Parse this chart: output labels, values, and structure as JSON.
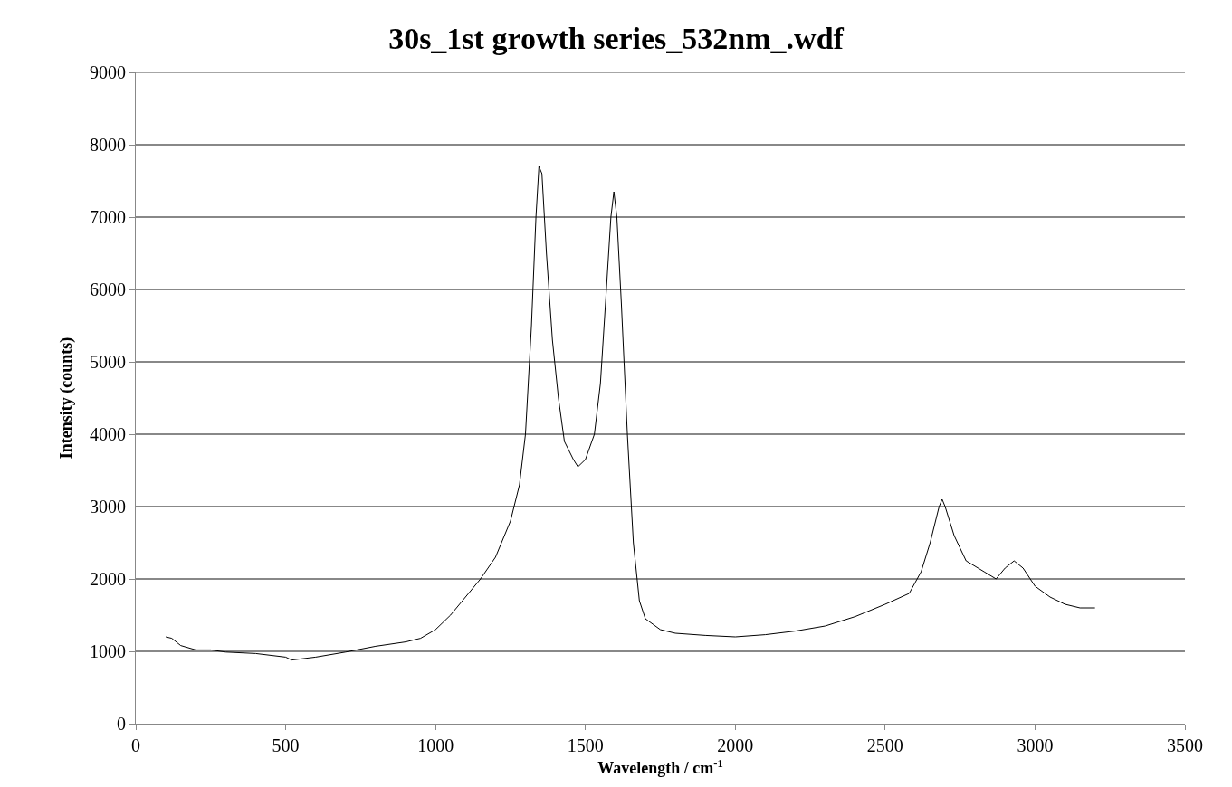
{
  "chart_data": {
    "type": "line",
    "title": "30s_1st growth series_532nm_.wdf",
    "xlabel": "Wavelength / cm$^{-1}$",
    "ylabel": "Intensity (counts)",
    "x": [
      100,
      120,
      150,
      200,
      250,
      300,
      400,
      500,
      520,
      600,
      700,
      800,
      900,
      950,
      1000,
      1050,
      1100,
      1150,
      1200,
      1250,
      1280,
      1300,
      1320,
      1335,
      1345,
      1355,
      1370,
      1390,
      1410,
      1430,
      1460,
      1475,
      1500,
      1530,
      1550,
      1570,
      1585,
      1595,
      1605,
      1620,
      1640,
      1660,
      1680,
      1700,
      1750,
      1800,
      1900,
      2000,
      2100,
      2200,
      2300,
      2400,
      2500,
      2580,
      2620,
      2650,
      2680,
      2690,
      2700,
      2730,
      2770,
      2830,
      2870,
      2900,
      2930,
      2960,
      3000,
      3050,
      3100,
      3150,
      3200
    ],
    "series": [
      {
        "color": "#000000",
        "values": [
          1200,
          1180,
          1080,
          1020,
          1020,
          990,
          970,
          920,
          880,
          920,
          990,
          1070,
          1130,
          1180,
          1300,
          1500,
          1750,
          2000,
          2300,
          2800,
          3300,
          4000,
          5500,
          7000,
          7700,
          7600,
          6500,
          5300,
          4500,
          3900,
          3650,
          3550,
          3650,
          4000,
          4700,
          6000,
          7000,
          7350,
          7000,
          5800,
          4000,
          2500,
          1700,
          1450,
          1300,
          1250,
          1220,
          1200,
          1230,
          1280,
          1350,
          1480,
          1650,
          1800,
          2100,
          2500,
          3000,
          3100,
          3000,
          2600,
          2250,
          2100,
          2000,
          2150,
          2250,
          2150,
          1900,
          1750,
          1650,
          1600,
          1600
        ]
      }
    ],
    "xlim": [
      0,
      3500
    ],
    "xticks": [
      0,
      500,
      1000,
      1500,
      2000,
      2500,
      3000,
      3500
    ],
    "ylim": [
      0,
      9000
    ],
    "yticks": [
      0,
      1000,
      2000,
      3000,
      4000,
      5000,
      6000,
      7000,
      8000,
      9000
    ],
    "grid": "y",
    "marker": "none",
    "line_style": "solid"
  }
}
